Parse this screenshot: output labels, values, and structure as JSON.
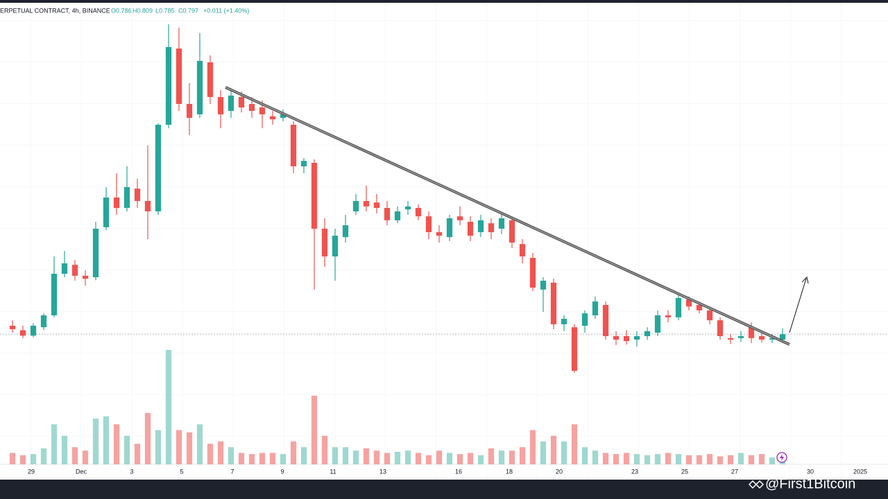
{
  "chart_data": {
    "type": "candlestick",
    "header": {
      "symbol": "ERPETUAL CONTRACT, 4h, BINANCE",
      "open": "O0.786",
      "high": "H0.809",
      "low": "L0.785",
      "close": "C0.797",
      "change": "+0.011 (+1.40%)"
    },
    "watermark": "@First1Bitcoin",
    "open": [
      0.814,
      0.805,
      0.794,
      0.811,
      0.835,
      0.919,
      0.937,
      0.915,
      0.912,
      1.013,
      1.073,
      1.052,
      1.091,
      1.066,
      1.045,
      1.22,
      1.374,
      1.262,
      1.241,
      1.346,
      1.276,
      1.248,
      1.276,
      1.262,
      1.255,
      1.237,
      1.234,
      1.22,
      1.136,
      1.143,
      1.01,
      0.954,
      0.993,
      1.045,
      1.066,
      1.063,
      1.052,
      1.027,
      1.049,
      1.052,
      1.035,
      1.003,
      0.993,
      1.035,
      1.024,
      1.003,
      1.021,
      1.01,
      1.027,
      0.979,
      0.951,
      0.887,
      0.901,
      0.817,
      0.811,
      0.814,
      0.835,
      0.856,
      0.793,
      0.793,
      0.786,
      0.793,
      0.8,
      0.835,
      0.831,
      0.867,
      0.856,
      0.845,
      0.825,
      0.789,
      0.789,
      0.811,
      0.793,
      0.786,
      0.786
    ],
    "high": [
      0.825,
      0.814,
      0.819,
      0.839,
      0.954,
      0.965,
      0.947,
      0.926,
      1.024,
      1.094,
      1.122,
      1.136,
      1.111,
      1.178,
      1.223,
      1.423,
      1.416,
      1.304,
      1.405,
      1.36,
      1.29,
      1.293,
      1.287,
      1.276,
      1.269,
      1.248,
      1.251,
      1.227,
      1.153,
      1.15,
      1.031,
      1.01,
      1.038,
      1.08,
      1.097,
      1.08,
      1.066,
      1.055,
      1.066,
      1.059,
      1.045,
      1.017,
      1.038,
      1.055,
      1.035,
      1.038,
      1.031,
      1.041,
      1.035,
      0.989,
      0.961,
      0.912,
      0.909,
      0.835,
      0.817,
      0.845,
      0.873,
      0.863,
      0.803,
      0.805,
      0.803,
      0.811,
      0.845,
      0.845,
      0.877,
      0.873,
      0.863,
      0.853,
      0.831,
      0.797,
      0.803,
      0.821,
      0.803,
      0.797,
      0.809
    ],
    "low": [
      0.8,
      0.789,
      0.791,
      0.805,
      0.831,
      0.912,
      0.905,
      0.895,
      0.906,
      1.007,
      1.038,
      1.045,
      1.052,
      0.989,
      1.038,
      1.213,
      1.248,
      1.199,
      1.234,
      1.262,
      1.213,
      1.234,
      1.245,
      1.234,
      1.213,
      1.22,
      1.227,
      1.122,
      1.122,
      0.887,
      0.933,
      0.905,
      0.982,
      1.038,
      1.045,
      1.041,
      1.017,
      1.021,
      1.038,
      1.027,
      0.989,
      0.982,
      0.985,
      1.017,
      0.985,
      0.993,
      0.989,
      0.999,
      0.971,
      0.94,
      0.884,
      0.842,
      0.807,
      0.803,
      0.719,
      0.8,
      0.828,
      0.786,
      0.775,
      0.776,
      0.772,
      0.786,
      0.793,
      0.821,
      0.825,
      0.845,
      0.839,
      0.817,
      0.786,
      0.777,
      0.781,
      0.779,
      0.78,
      0.779,
      0.785
    ],
    "close": [
      0.807,
      0.794,
      0.814,
      0.835,
      0.919,
      0.94,
      0.915,
      0.909,
      1.01,
      1.073,
      1.052,
      1.094,
      1.066,
      1.045,
      1.22,
      1.377,
      1.262,
      1.234,
      1.349,
      1.276,
      1.241,
      1.279,
      1.255,
      1.248,
      1.241,
      1.231,
      1.241,
      1.136,
      1.147,
      1.01,
      0.954,
      0.996,
      1.017,
      1.066,
      1.055,
      1.052,
      1.027,
      1.045,
      1.055,
      1.035,
      1.003,
      0.996,
      1.031,
      1.027,
      0.996,
      1.027,
      1.003,
      1.031,
      0.982,
      0.954,
      0.891,
      0.905,
      0.817,
      0.828,
      0.723,
      0.839,
      0.863,
      0.793,
      0.786,
      0.783,
      0.793,
      0.803,
      0.835,
      0.831,
      0.87,
      0.853,
      0.845,
      0.825,
      0.793,
      0.786,
      0.793,
      0.789,
      0.786,
      0.789,
      0.797
    ],
    "volume": [
      10,
      8,
      9,
      14,
      35,
      25,
      15,
      12,
      40,
      42,
      35,
      25,
      18,
      45,
      30,
      100,
      30,
      28,
      35,
      18,
      20,
      15,
      10,
      9,
      10,
      10,
      9,
      20,
      15,
      60,
      25,
      15,
      15,
      12,
      14,
      12,
      10,
      11,
      12,
      10,
      8,
      12,
      10,
      9,
      10,
      8,
      14,
      12,
      12,
      15,
      30,
      20,
      25,
      20,
      35,
      15,
      12,
      10,
      9,
      10,
      9,
      8,
      9,
      10,
      9,
      8,
      8,
      9,
      7,
      8,
      10,
      8,
      9,
      6,
      4
    ],
    "xlim": [
      -1.2,
      84.133
    ],
    "xticks": [
      {
        "value": 1.8,
        "label": "29"
      },
      {
        "value": 6.6,
        "label": "Dec"
      },
      {
        "value": 11.47,
        "label": "3"
      },
      {
        "value": 16.27,
        "label": "5"
      },
      {
        "value": 21.13,
        "label": "7"
      },
      {
        "value": 25.93,
        "label": "9"
      },
      {
        "value": 30.8,
        "label": "11"
      },
      {
        "value": 35.6,
        "label": "13"
      },
      {
        "value": 42.87,
        "label": "16"
      },
      {
        "value": 47.73,
        "label": "18"
      },
      {
        "value": 52.53,
        "label": "20"
      },
      {
        "value": 59.8,
        "label": "23"
      },
      {
        "value": 64.6,
        "label": "25"
      },
      {
        "value": 69.4,
        "label": "27"
      },
      {
        "value": 76.67,
        "label": "30"
      },
      {
        "value": 81.47,
        "label": "2025"
      }
    ],
    "ylim": [
      0.702,
      1.43
    ],
    "vlim": [
      0,
      100
    ],
    "up_color": "#26a69a",
    "down_color": "#ef5350",
    "volume_up_color": "#9fd8d0",
    "volume_down_color": "#f5a3a1"
  }
}
